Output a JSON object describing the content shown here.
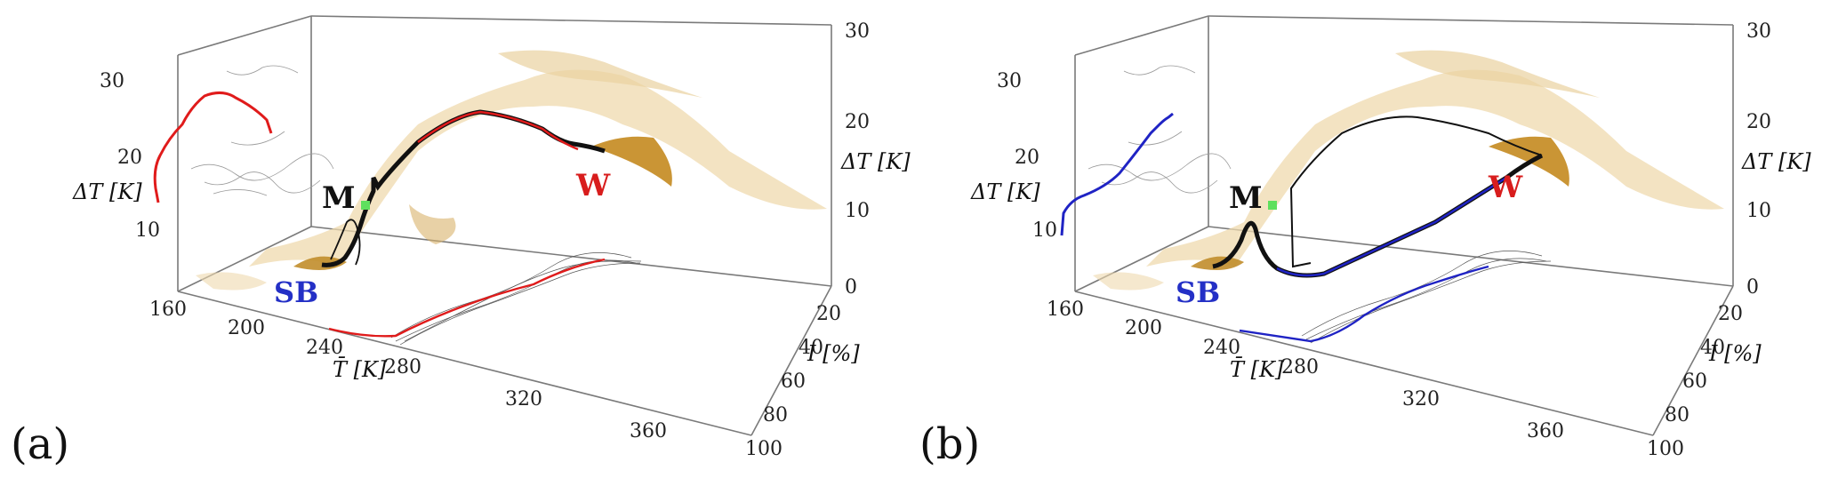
{
  "panels": [
    {
      "tag": "(a)",
      "markers": {
        "M": "M",
        "W": "W",
        "SB": "SB"
      },
      "trajectory_color": "#e01b1b",
      "dt_label": "ΔT [K]",
      "tbar_label": "T̄ [K]",
      "i_label": "I [%]"
    },
    {
      "tag": "(b)",
      "markers": {
        "M": "M",
        "W": "W",
        "SB": "SB"
      },
      "trajectory_color": "#1f23c4",
      "dt_label": "ΔT [K]",
      "tbar_label": "T̄ [K]",
      "i_label": "I [%]"
    }
  ],
  "axes": {
    "tbar_ticks": [
      "160",
      "200",
      "240",
      "280",
      "320",
      "360"
    ],
    "i_ticks": [
      "20",
      "40",
      "60",
      "80",
      "100"
    ],
    "dt_back_ticks": [
      "30",
      "20",
      "10"
    ],
    "dt_right_ticks": [
      "30",
      "20",
      "10",
      "0"
    ]
  },
  "colors": {
    "cloud": "#e8c98e",
    "cloud_dark": "#b8831e",
    "marker_green": "#5ee05e",
    "box": "#6a6a6a"
  }
}
